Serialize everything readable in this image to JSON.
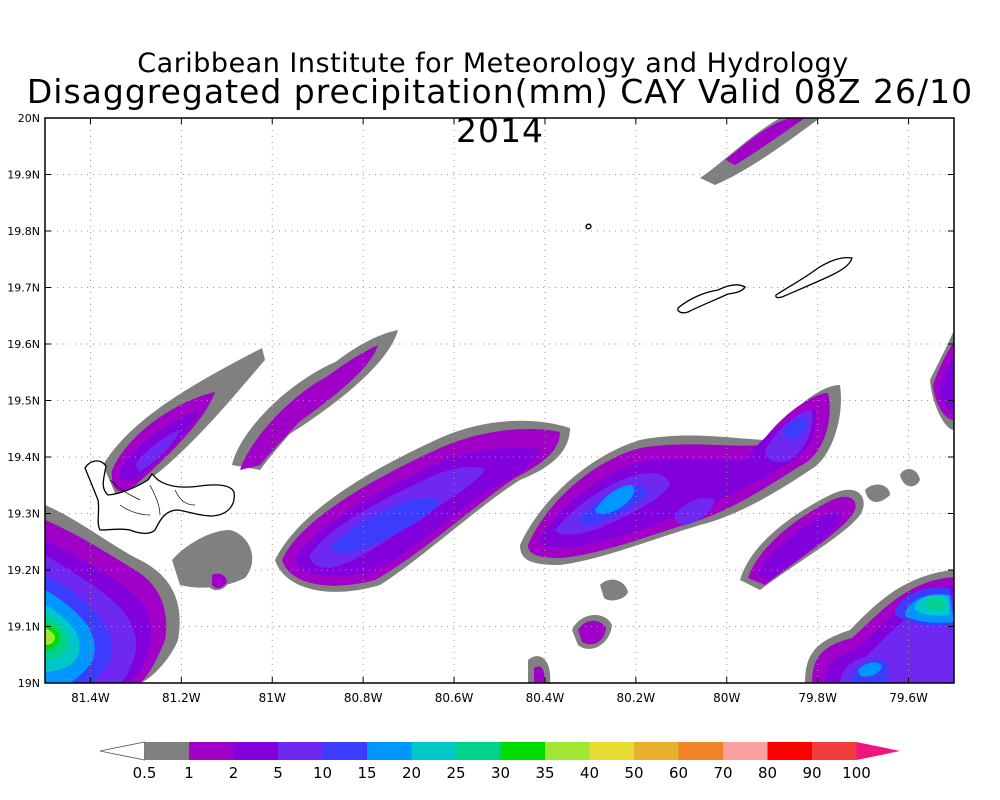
{
  "title": {
    "line1": "Caribbean Institute for Meteorology and Hydrology",
    "line2": "Disaggregated precipitation(mm) CAY Valid 08Z 26/10 2014"
  },
  "axes": {
    "lon_ticks": [
      {
        "value": -81.4,
        "label": "81.4W"
      },
      {
        "value": -81.2,
        "label": "81.2W"
      },
      {
        "value": -81.0,
        "label": "81W"
      },
      {
        "value": -80.8,
        "label": "80.8W"
      },
      {
        "value": -80.6,
        "label": "80.6W"
      },
      {
        "value": -80.4,
        "label": "80.4W"
      },
      {
        "value": -80.2,
        "label": "80.2W"
      },
      {
        "value": -80.0,
        "label": "80W"
      },
      {
        "value": -79.8,
        "label": "79.8W"
      },
      {
        "value": -79.6,
        "label": "79.6W"
      }
    ],
    "lat_ticks": [
      {
        "value": 19.0,
        "label": "19N"
      },
      {
        "value": 19.1,
        "label": "19.1N"
      },
      {
        "value": 19.2,
        "label": "19.2N"
      },
      {
        "value": 19.3,
        "label": "19.3N"
      },
      {
        "value": 19.4,
        "label": "19.4N"
      },
      {
        "value": 19.5,
        "label": "19.5N"
      },
      {
        "value": 19.6,
        "label": "19.6N"
      },
      {
        "value": 19.7,
        "label": "19.7N"
      },
      {
        "value": 19.8,
        "label": "19.8N"
      },
      {
        "value": 19.9,
        "label": "19.9N"
      },
      {
        "value": 20.0,
        "label": "20N"
      }
    ],
    "lon_range": [
      -81.5,
      -79.5
    ],
    "lat_range": [
      19.0,
      20.0
    ],
    "grid": "dotted"
  },
  "legend": {
    "labels": [
      "0.5",
      "1",
      "2",
      "5",
      "10",
      "15",
      "20",
      "25",
      "30",
      "35",
      "40",
      "50",
      "60",
      "70",
      "80",
      "90",
      "100"
    ],
    "colors": [
      "#ffffff",
      "#808080",
      "#a000c8",
      "#8200dc",
      "#6e28f0",
      "#3c3cff",
      "#0096ff",
      "#00c8c8",
      "#00d28c",
      "#00dc00",
      "#a0e632",
      "#e6dc32",
      "#e6af2d",
      "#f08228",
      "#faa0a0",
      "#ff0000",
      "#f03c3c",
      "#f0147f"
    ]
  },
  "features": {
    "islands": [
      "Grand Cayman",
      "Little Cayman",
      "Cayman Brac"
    ]
  },
  "precip_cells": [
    {
      "name": "grand-cayman-north-band",
      "max_mm": 5
    },
    {
      "name": "band-81w",
      "max_mm": 2
    },
    {
      "name": "band-80-8w-north",
      "max_mm": 2
    },
    {
      "name": "main-central-band",
      "max_mm": 10
    },
    {
      "name": "central-east-band",
      "max_mm": 15
    },
    {
      "name": "southwest-corner-cell",
      "max_mm": 35
    },
    {
      "name": "east-79-7w-cell",
      "max_mm": 10
    },
    {
      "name": "southeast-corner-cell",
      "max_mm": 25
    },
    {
      "name": "top-north-band",
      "max_mm": 2
    }
  ]
}
